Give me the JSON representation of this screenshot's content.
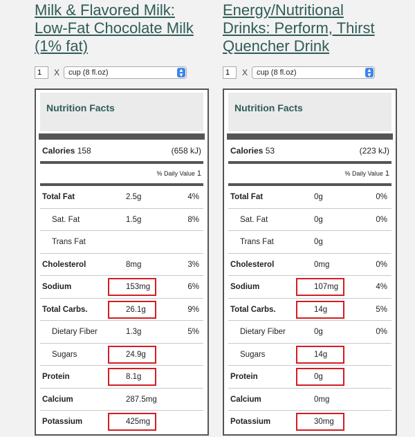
{
  "products": [
    {
      "title_lines": [
        "Milk & Flavored Milk:",
        "Low-Fat Chocolate Milk",
        "(1% fat)"
      ],
      "quantity": "1",
      "times": "X",
      "serving": "cup (8 fl.oz)",
      "nutrition_title": "Nutrition Facts",
      "calories_label": "Calories",
      "calories_value": "158",
      "kj": "(658 kJ)",
      "dv_label": "% Daily Value",
      "dv_footnote": "1",
      "rows": [
        {
          "label": "Total Fat",
          "amount": "2.5g",
          "pct": "4%",
          "highlight": false
        },
        {
          "label": "Sat. Fat",
          "amount": "1.5g",
          "pct": "8%",
          "highlight": false
        },
        {
          "label": "Trans Fat",
          "amount": "",
          "pct": "",
          "highlight": false
        },
        {
          "label": "Cholesterol",
          "amount": "8mg",
          "pct": "3%",
          "highlight": false
        },
        {
          "label": "Sodium",
          "amount": "153mg",
          "pct": "6%",
          "highlight": true
        },
        {
          "label": "Total Carbs.",
          "amount": "26.1g",
          "pct": "9%",
          "highlight": true
        },
        {
          "label": "Dietary Fiber",
          "amount": "1.3g",
          "pct": "5%",
          "highlight": false
        },
        {
          "label": "Sugars",
          "amount": "24.9g",
          "pct": "",
          "highlight": true
        },
        {
          "label": "Protein",
          "amount": "8.1g",
          "pct": "",
          "highlight": true
        },
        {
          "label": "Calcium",
          "amount": "287.5mg",
          "pct": "",
          "highlight": false
        },
        {
          "label": "Potassium",
          "amount": "425mg",
          "pct": "",
          "highlight": true
        }
      ]
    },
    {
      "title_lines": [
        "Energy/Nutritional",
        "Drinks: Perform, Thirst",
        "Quencher Drink"
      ],
      "quantity": "1",
      "times": "X",
      "serving": "cup (8 fl.oz)",
      "nutrition_title": "Nutrition Facts",
      "calories_label": "Calories",
      "calories_value": "53",
      "kj": "(223 kJ)",
      "dv_label": "% Daily Value",
      "dv_footnote": "1",
      "rows": [
        {
          "label": "Total Fat",
          "amount": "0g",
          "pct": "0%",
          "highlight": false
        },
        {
          "label": "Sat. Fat",
          "amount": "0g",
          "pct": "0%",
          "highlight": false
        },
        {
          "label": "Trans Fat",
          "amount": "0g",
          "pct": "",
          "highlight": false
        },
        {
          "label": "Cholesterol",
          "amount": "0mg",
          "pct": "0%",
          "highlight": false
        },
        {
          "label": "Sodium",
          "amount": "107mg",
          "pct": "4%",
          "highlight": true
        },
        {
          "label": "Total Carbs.",
          "amount": "14g",
          "pct": "5%",
          "highlight": true
        },
        {
          "label": "Dietary Fiber",
          "amount": "0g",
          "pct": "0%",
          "highlight": false
        },
        {
          "label": "Sugars",
          "amount": "14g",
          "pct": "",
          "highlight": true
        },
        {
          "label": "Protein",
          "amount": "0g",
          "pct": "",
          "highlight": true
        },
        {
          "label": "Calcium",
          "amount": "0mg",
          "pct": "",
          "highlight": false
        },
        {
          "label": "Potassium",
          "amount": "30mg",
          "pct": "",
          "highlight": true
        }
      ]
    }
  ],
  "colors": {
    "title": "#2f5c56",
    "highlight": "#d41c24",
    "panel_border": "#555555"
  }
}
